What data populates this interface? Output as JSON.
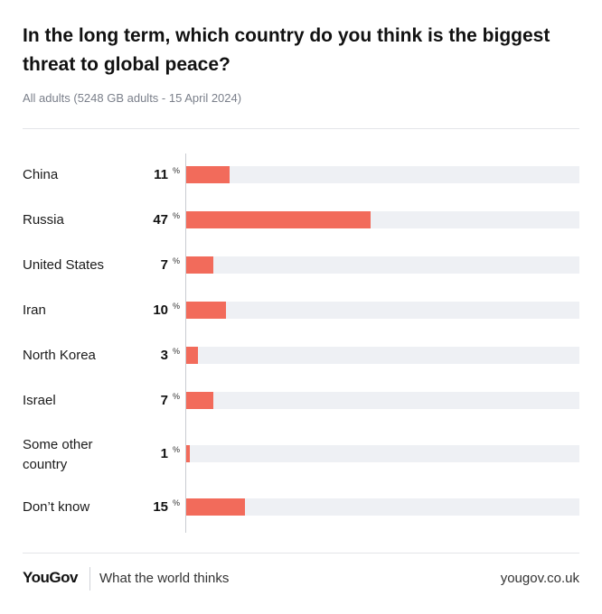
{
  "title": "In the long term, which country do you think is the biggest threat to global peace?",
  "subtitle": "All adults (5248 GB adults - 15 April 2024)",
  "footer": {
    "logo": "YouGov",
    "tagline": "What the world thinks",
    "url": "yougov.co.uk"
  },
  "colors": {
    "bar": "#f26b5b",
    "track": "#eef0f4"
  },
  "chart_data": {
    "type": "bar",
    "orientation": "horizontal",
    "unit": "%",
    "categories": [
      "China",
      "Russia",
      "United States",
      "Iran",
      "North Korea",
      "Israel",
      "Some other country",
      "Don’t know"
    ],
    "values": [
      11,
      47,
      7,
      10,
      3,
      7,
      1,
      15
    ],
    "xlim": [
      0,
      100
    ],
    "grid": false,
    "legend": "none"
  }
}
